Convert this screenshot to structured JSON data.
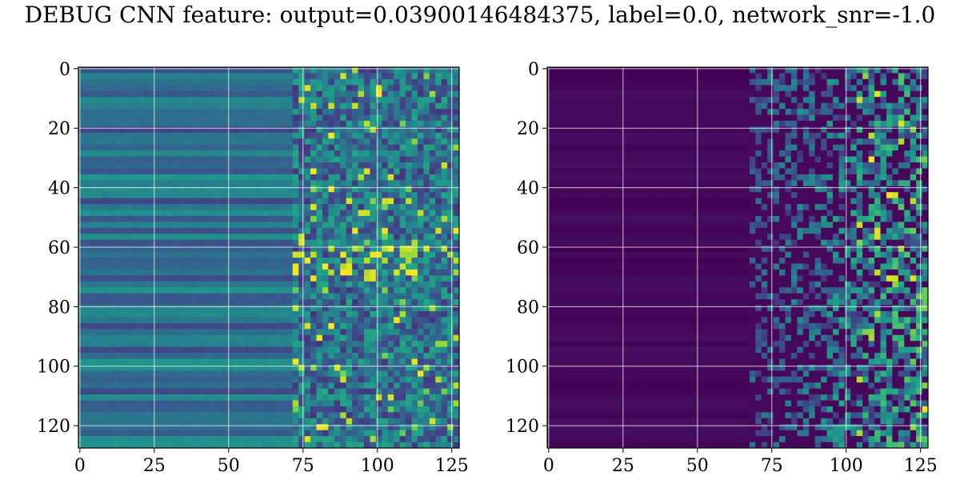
{
  "title": "DEBUG CNN feature: output=0.03900146484375, label=0.0, network_snr=-1.0",
  "colormap": "viridis",
  "colors": {
    "grid": "#ffffff",
    "axis": "#000000",
    "low": "#440154",
    "mid": "#21918c",
    "high": "#fde725"
  },
  "chart_data": [
    {
      "type": "heatmap",
      "title": "",
      "xlabel": "",
      "ylabel": "",
      "xlim": [
        0,
        127
      ],
      "ylim": [
        127,
        0
      ],
      "rows": 128,
      "cols": 128,
      "grid": true,
      "xticks": [
        0,
        25,
        50,
        75,
        100,
        125
      ],
      "yticks": [
        0,
        20,
        40,
        60,
        80,
        100,
        120
      ],
      "xtick_labels": [
        "0",
        "25",
        "50",
        "75",
        "100",
        "125"
      ],
      "ytick_labels": [
        "0",
        "20",
        "40",
        "60",
        "80",
        "100",
        "120"
      ],
      "description_of_values": "rows 0-127 show near-uniform mid-blue/teal horizontal stripes for columns 0-70, transitioning to speckled noise with yellow hot spots for columns 75-127; strongest values near rows 60-68 and columns 80-120"
    },
    {
      "type": "heatmap",
      "title": "",
      "xlabel": "",
      "ylabel": "",
      "xlim": [
        0,
        127
      ],
      "ylim": [
        127,
        0
      ],
      "rows": 128,
      "cols": 128,
      "grid": true,
      "xticks": [
        0,
        25,
        50,
        75,
        100,
        125
      ],
      "yticks": [
        0,
        20,
        40,
        60,
        80,
        100,
        120
      ],
      "xtick_labels": [
        "0",
        "25",
        "50",
        "75",
        "100",
        "125"
      ],
      "ytick_labels": [
        "0",
        "20",
        "40",
        "60",
        "80",
        "100",
        "120"
      ],
      "description_of_values": "dark purple (near zero) for columns 0-65; sparse teal/green streaks increasing toward columns 75-127; occasional yellow spots near columns 105-125"
    }
  ]
}
